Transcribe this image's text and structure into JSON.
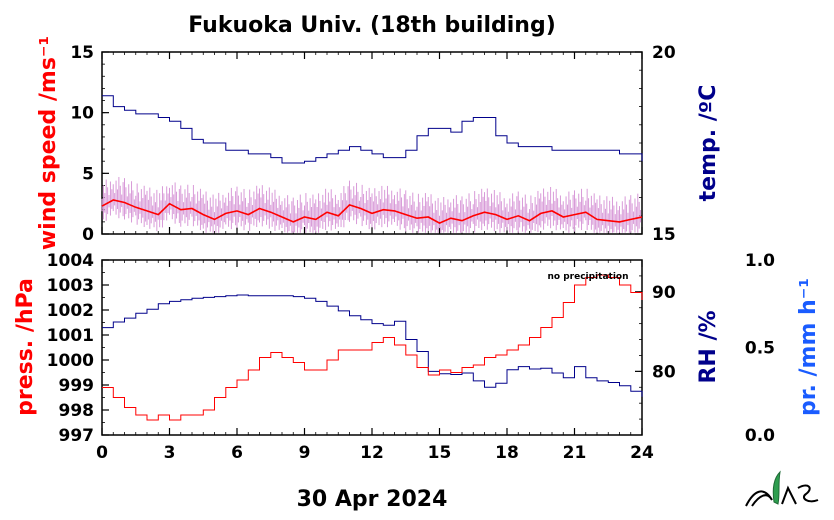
{
  "title": "Fukuoka Univ. (18th building)",
  "date_label": "30 Apr 2024",
  "note": "no precipitation",
  "colors": {
    "wind": "#ff0000",
    "wind_raw": "#d89ad8",
    "temp": "#00008b",
    "pressure": "#ff0000",
    "rh": "#00008b",
    "precip": "#1a5cff",
    "logo_green": "#2e9e4f"
  },
  "chart_data": [
    {
      "type": "line",
      "name": "top-panel",
      "xlim": [
        0,
        24
      ],
      "x_ticks": [
        "0",
        "3",
        "6",
        "9",
        "12",
        "15",
        "18",
        "21",
        "24"
      ],
      "left_axis": {
        "label": "wind speed /ms⁻¹",
        "ylim": [
          0,
          15
        ],
        "ticks": [
          "0",
          "5",
          "10",
          "15"
        ]
      },
      "right_axis": {
        "label": "temp. /ºC",
        "ylim": [
          15,
          20
        ],
        "ticks": [
          "15",
          "20"
        ]
      },
      "series": [
        {
          "axis": "left",
          "style": "wind-mean",
          "x": [
            0,
            0.5,
            1,
            1.5,
            2,
            2.5,
            3,
            3.5,
            4,
            4.5,
            5,
            5.5,
            6,
            6.5,
            7,
            7.5,
            8,
            8.5,
            9,
            9.5,
            10,
            10.5,
            11,
            11.5,
            12,
            12.5,
            13,
            13.5,
            14,
            14.5,
            15,
            15.5,
            16,
            16.5,
            17,
            17.5,
            18,
            18.5,
            19,
            19.5,
            20,
            20.5,
            21,
            21.5,
            22,
            22.5,
            23,
            23.5,
            24
          ],
          "y": [
            2.3,
            2.8,
            2.6,
            2.2,
            1.9,
            1.6,
            2.5,
            2.0,
            2.1,
            1.6,
            1.2,
            1.7,
            1.9,
            1.6,
            2.1,
            1.8,
            1.4,
            1.0,
            1.4,
            1.2,
            1.8,
            1.5,
            2.4,
            2.1,
            1.7,
            2.0,
            1.9,
            1.6,
            1.3,
            1.4,
            0.9,
            1.3,
            1.1,
            1.5,
            1.8,
            1.6,
            1.2,
            1.5,
            1.1,
            1.7,
            1.9,
            1.4,
            1.6,
            1.8,
            1.2,
            1.1,
            1.0,
            1.2,
            1.4
          ]
        },
        {
          "axis": "right",
          "style": "temperature",
          "x": [
            0,
            0.5,
            1,
            1.5,
            2,
            2.5,
            3,
            3.5,
            4,
            4.5,
            5,
            5.5,
            6,
            6.5,
            7,
            7.5,
            8,
            8.5,
            9,
            9.5,
            10,
            10.5,
            11,
            11.5,
            12,
            12.5,
            13,
            13.5,
            14,
            14.5,
            15,
            15.5,
            16,
            16.5,
            17,
            17.5,
            18,
            18.5,
            19,
            19.5,
            20,
            20.5,
            21,
            21.5,
            22,
            22.5,
            23,
            23.5,
            24
          ],
          "y": [
            18.8,
            18.5,
            18.4,
            18.3,
            18.3,
            18.2,
            18.1,
            17.9,
            17.6,
            17.5,
            17.5,
            17.3,
            17.3,
            17.2,
            17.2,
            17.1,
            16.95,
            16.95,
            17.0,
            17.1,
            17.2,
            17.3,
            17.4,
            17.3,
            17.2,
            17.1,
            17.1,
            17.3,
            17.7,
            17.9,
            17.9,
            17.8,
            18.1,
            18.2,
            18.2,
            17.7,
            17.5,
            17.4,
            17.4,
            17.4,
            17.3,
            17.3,
            17.3,
            17.3,
            17.3,
            17.3,
            17.2,
            17.2,
            17.0
          ]
        }
      ]
    },
    {
      "type": "line",
      "name": "bottom-panel",
      "xlim": [
        0,
        24
      ],
      "x_ticks": [
        "0",
        "3",
        "6",
        "9",
        "12",
        "15",
        "18",
        "21",
        "24"
      ],
      "xlabel": "30 Apr 2024",
      "left_axis": {
        "label": "press. /hPa",
        "ylim": [
          997,
          1004
        ],
        "ticks": [
          "997",
          "998",
          "999",
          "1000",
          "1001",
          "1002",
          "1003",
          "1004"
        ]
      },
      "right_axis": {
        "label": "RH /%",
        "ylim": [
          72,
          94
        ],
        "ticks": [
          "80",
          "90"
        ]
      },
      "far_right_axis": {
        "label": "pr. /mm h⁻¹",
        "ylim": [
          0,
          1
        ],
        "ticks": [
          "0.0",
          "0.5",
          "1.0"
        ]
      },
      "series": [
        {
          "axis": "left",
          "style": "pressure",
          "x": [
            0,
            0.5,
            1,
            1.5,
            2,
            2.5,
            3,
            3.5,
            4,
            4.5,
            5,
            5.5,
            6,
            6.5,
            7,
            7.5,
            8,
            8.5,
            9,
            9.5,
            10,
            10.5,
            11,
            11.5,
            12,
            12.5,
            13,
            13.5,
            14,
            14.5,
            15,
            15.5,
            16,
            16.5,
            17,
            17.5,
            18,
            18.5,
            19,
            19.5,
            20,
            20.5,
            21,
            21.5,
            22,
            22.5,
            23,
            23.5,
            24
          ],
          "y": [
            998.9,
            998.5,
            998.1,
            997.8,
            997.6,
            997.8,
            997.6,
            997.8,
            997.8,
            998.0,
            998.5,
            998.9,
            999.2,
            999.6,
            1000.1,
            1000.3,
            1000.1,
            999.9,
            999.6,
            999.6,
            1000.0,
            1000.4,
            1000.4,
            1000.4,
            1000.7,
            1000.9,
            1000.6,
            1000.2,
            999.7,
            999.4,
            999.6,
            999.5,
            999.7,
            999.8,
            1000.1,
            1000.2,
            1000.4,
            1000.6,
            1000.9,
            1001.3,
            1001.7,
            1002.3,
            1003.0,
            1003.3,
            1003.4,
            1003.3,
            1003.0,
            1002.7,
            1002.4
          ]
        },
        {
          "axis": "right",
          "style": "humidity",
          "x": [
            0,
            0.5,
            1,
            1.5,
            2,
            2.5,
            3,
            3.5,
            4,
            4.5,
            5,
            5.5,
            6,
            6.5,
            7,
            7.5,
            8,
            8.5,
            9,
            9.5,
            10,
            10.5,
            11,
            11.5,
            12,
            12.5,
            13,
            13.5,
            14,
            14.5,
            15,
            15.5,
            16,
            16.5,
            17,
            17.5,
            18,
            18.5,
            19,
            19.5,
            20,
            20.5,
            21,
            21.5,
            22,
            22.5,
            23,
            23.5,
            24
          ],
          "y": [
            85.5,
            86.2,
            86.7,
            87.3,
            87.8,
            88.5,
            88.8,
            89.0,
            89.2,
            89.3,
            89.4,
            89.5,
            89.6,
            89.5,
            89.5,
            89.5,
            89.5,
            89.4,
            89.2,
            88.8,
            88.2,
            87.6,
            87.0,
            86.5,
            86.0,
            85.8,
            86.3,
            84.0,
            82.5,
            80.0,
            79.7,
            79.6,
            79.8,
            78.8,
            78.0,
            78.5,
            80.2,
            80.6,
            80.3,
            80.4,
            79.8,
            79.2,
            80.6,
            79.2,
            78.8,
            78.6,
            78.2,
            77.5,
            76.8
          ]
        }
      ]
    }
  ]
}
